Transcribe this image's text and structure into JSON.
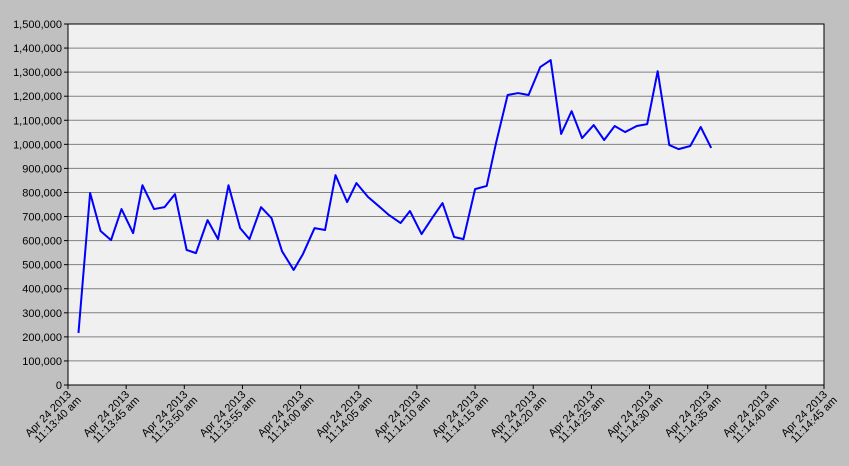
{
  "chart_data": {
    "type": "line",
    "x": [
      0.9,
      1.9,
      2.8,
      3.7,
      4.6,
      5.6,
      6.4,
      7.4,
      8.3,
      9.2,
      10.2,
      11.0,
      12.0,
      12.9,
      13.8,
      14.8,
      15.6,
      16.6,
      17.5,
      18.4,
      19.4,
      20.2,
      21.2,
      22.1,
      23.0,
      24.0,
      24.8,
      25.8,
      26.7,
      27.6,
      28.6,
      29.4,
      30.4,
      31.3,
      32.2,
      33.2,
      34.0,
      35.0,
      36.0,
      36.8,
      37.8,
      38.7,
      39.6,
      40.6,
      41.5,
      42.4,
      43.3,
      44.2,
      45.2,
      46.1,
      47.0,
      47.9,
      48.9,
      49.8,
      50.7,
      51.7,
      52.5,
      53.5,
      54.4,
      55.3
    ],
    "series": [
      {
        "color": "#0000ff",
        "values": [
          216000,
          798000,
          640000,
          602000,
          731000,
          631000,
          830000,
          731000,
          739000,
          793000,
          561000,
          548000,
          685000,
          606000,
          830000,
          652000,
          606000,
          739000,
          693000,
          556000,
          478000,
          544000,
          652000,
          644000,
          872000,
          760000,
          839000,
          781000,
          744000,
          706000,
          673000,
          723000,
          627000,
          693000,
          756000,
          615000,
          606000,
          814000,
          827000,
          1005000,
          1205000,
          1213000,
          1205000,
          1321000,
          1350000,
          1043000,
          1138000,
          1026000,
          1080000,
          1018000,
          1076000,
          1051000,
          1076000,
          1084000,
          1304000,
          997000,
          980000,
          993000,
          1072000,
          985000
        ]
      }
    ],
    "xlim": [
      0,
      65
    ],
    "xticks": [
      {
        "value": 0,
        "label": "Apr 24 2013 11:13:40 am"
      },
      {
        "value": 5,
        "label": "Apr 24 2013 11:13:45 am"
      },
      {
        "value": 10,
        "label": "Apr 24 2013 11:13:50 am"
      },
      {
        "value": 15,
        "label": "Apr 24 2013 11:13:55 am"
      },
      {
        "value": 20,
        "label": "Apr 24 2013 11:14:00 am"
      },
      {
        "value": 25,
        "label": "Apr 24 2013 11:14:05 am"
      },
      {
        "value": 30,
        "label": "Apr 24 2013 11:14:10 am"
      },
      {
        "value": 35,
        "label": "Apr 24 2013 11:14:15 am"
      },
      {
        "value": 40,
        "label": "Apr 24 2013 11:14:20 am"
      },
      {
        "value": 45,
        "label": "Apr 24 2013 11:14:25 am"
      },
      {
        "value": 50,
        "label": "Apr 24 2013 11:14:30 am"
      },
      {
        "value": 55,
        "label": "Apr 24 2013 11:14:35 am"
      },
      {
        "value": 60,
        "label": "Apr 24 2013 11:14:40 am"
      },
      {
        "value": 65,
        "label": "Apr 24 2013 11:14:45 am"
      }
    ],
    "ylim": [
      0,
      1500000
    ],
    "yticks": [
      0,
      {
        "value": 100000,
        "label": "100,000"
      },
      {
        "value": 200000,
        "label": "200,000"
      },
      {
        "value": 300000,
        "label": "300,000"
      },
      {
        "value": 400000,
        "label": "400,000"
      },
      {
        "value": 500000,
        "label": "500,000"
      },
      {
        "value": 600000,
        "label": "600,000"
      },
      {
        "value": 700000,
        "label": "700,000"
      },
      {
        "value": 800000,
        "label": "800,000"
      },
      {
        "value": 900000,
        "label": "900,000"
      },
      {
        "value": 1000000,
        "label": "1,000,000"
      },
      {
        "value": 1100000,
        "label": "1,100,000"
      },
      {
        "value": 1200000,
        "label": "1,200,000"
      },
      {
        "value": 1300000,
        "label": "1,300,000"
      },
      {
        "value": 1400000,
        "label": "1,400,000"
      },
      {
        "value": 1500000,
        "label": "1,500,000"
      }
    ],
    "grid": true
  }
}
